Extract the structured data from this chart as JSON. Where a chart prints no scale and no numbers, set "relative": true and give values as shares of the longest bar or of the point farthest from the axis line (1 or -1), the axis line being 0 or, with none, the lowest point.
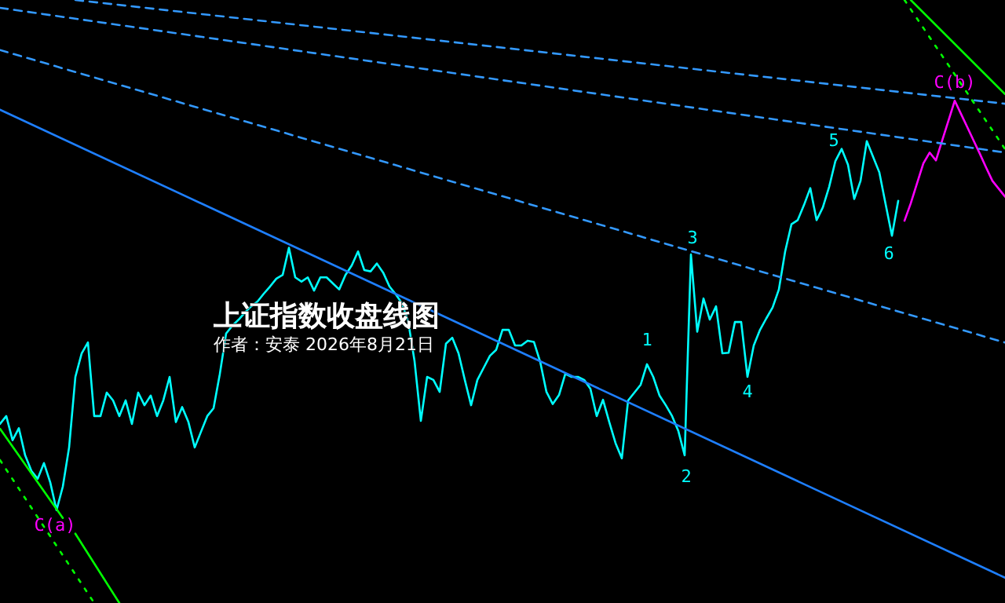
{
  "chart_data": {
    "type": "line",
    "relative": true,
    "title": "上证指数收盘线图",
    "subtitle": "作者：安泰 2026年8月21日",
    "categories": [
      null,
      null,
      null,
      null,
      null,
      null,
      null,
      null,
      null,
      null,
      null,
      null,
      null,
      null,
      null,
      null,
      null,
      null,
      null,
      null,
      null,
      null,
      null,
      null,
      null,
      null,
      null,
      null,
      null,
      null,
      null,
      null,
      null,
      null,
      null,
      null,
      null,
      null,
      null,
      null,
      null,
      null,
      null,
      null,
      null,
      null,
      null,
      null,
      null,
      null,
      null,
      null,
      null,
      null,
      null,
      null,
      null,
      null,
      null,
      null,
      null,
      null,
      null,
      null,
      null,
      null,
      null,
      null,
      null,
      null,
      null,
      null,
      null,
      null,
      null,
      null,
      null,
      null,
      null,
      null,
      null,
      null,
      null,
      null,
      null,
      null,
      null,
      null,
      null,
      null,
      null,
      null,
      null,
      null,
      null,
      null,
      null,
      null,
      null,
      null,
      null,
      null,
      null,
      null,
      null,
      null,
      null,
      null,
      null,
      null,
      null,
      null,
      null,
      null,
      null,
      null,
      null,
      null,
      null,
      null,
      null,
      null,
      null,
      null,
      null,
      null,
      null,
      null,
      null,
      null,
      null,
      null,
      null,
      null,
      null,
      null,
      null,
      null,
      null,
      null,
      null,
      null,
      null,
      null,
      null,
      null,
      null,
      null,
      null,
      null,
      null,
      null,
      null,
      null,
      null,
      null,
      null,
      null,
      null,
      null,
      null
    ],
    "series": [
      {
        "color": "#00ffff",
        "line_style": "solid",
        "values": [
          0.297,
          0.31,
          0.27,
          0.29,
          0.245,
          0.219,
          0.206,
          0.232,
          0.2,
          0.154,
          0.193,
          0.258,
          0.375,
          0.414,
          0.432,
          0.31,
          0.31,
          0.349,
          0.336,
          0.31,
          0.336,
          0.297,
          0.349,
          0.328,
          0.344,
          0.31,
          0.336,
          0.375,
          0.3,
          0.325,
          0.3,
          0.258,
          0.284,
          0.31,
          0.323,
          0.38,
          0.447,
          0.46,
          0.47,
          0.482,
          0.492,
          0.5,
          0.513,
          0.525,
          0.538,
          0.544,
          0.589,
          0.54,
          0.533,
          0.54,
          0.518,
          0.54,
          0.54,
          0.53,
          0.52,
          0.544,
          0.56,
          0.583,
          0.552,
          0.55,
          0.563,
          0.548,
          0.525,
          0.512,
          0.497,
          0.466,
          0.401,
          0.302,
          0.375,
          0.37,
          0.35,
          0.43,
          0.44,
          0.414,
          0.37,
          0.328,
          0.37,
          0.39,
          0.41,
          0.42,
          0.453,
          0.453,
          0.427,
          0.427,
          0.435,
          0.433,
          0.4,
          0.35,
          0.33,
          0.345,
          0.38,
          0.375,
          0.375,
          0.37,
          0.355,
          0.31,
          0.337,
          0.3,
          0.265,
          0.24,
          0.336,
          0.349,
          0.362,
          0.396,
          0.375,
          0.344,
          0.328,
          0.31,
          0.285,
          0.245,
          0.578,
          0.45,
          0.505,
          0.47,
          0.492,
          0.414,
          0.415,
          0.466,
          0.466,
          0.375,
          0.427,
          0.453,
          0.472,
          0.49,
          0.52,
          0.583,
          0.628,
          0.635,
          0.66,
          0.688,
          0.635,
          0.656,
          0.69,
          0.733,
          0.753,
          0.727,
          0.67,
          0.7,
          0.766,
          0.74,
          0.714,
          0.661,
          0.609,
          0.667,
          null,
          null,
          null,
          null,
          null,
          null,
          null,
          null,
          null,
          null,
          null,
          null,
          null,
          null,
          null,
          null,
          null
        ]
      },
      {
        "color": "#ff00ff",
        "line_style": "solid",
        "values": [
          null,
          null,
          null,
          null,
          null,
          null,
          null,
          null,
          null,
          null,
          null,
          null,
          null,
          null,
          null,
          null,
          null,
          null,
          null,
          null,
          null,
          null,
          null,
          null,
          null,
          null,
          null,
          null,
          null,
          null,
          null,
          null,
          null,
          null,
          null,
          null,
          null,
          null,
          null,
          null,
          null,
          null,
          null,
          null,
          null,
          null,
          null,
          null,
          null,
          null,
          null,
          null,
          null,
          null,
          null,
          null,
          null,
          null,
          null,
          null,
          null,
          null,
          null,
          null,
          null,
          null,
          null,
          null,
          null,
          null,
          null,
          null,
          null,
          null,
          null,
          null,
          null,
          null,
          null,
          null,
          null,
          null,
          null,
          null,
          null,
          null,
          null,
          null,
          null,
          null,
          null,
          null,
          null,
          null,
          null,
          null,
          null,
          null,
          null,
          null,
          null,
          null,
          null,
          null,
          null,
          null,
          null,
          null,
          null,
          null,
          null,
          null,
          null,
          null,
          null,
          null,
          null,
          null,
          null,
          null,
          null,
          null,
          null,
          null,
          null,
          null,
          null,
          null,
          null,
          null,
          null,
          null,
          null,
          null,
          null,
          null,
          null,
          null,
          null,
          null,
          null,
          null,
          null,
          null,
          0.634,
          0.663,
          0.696,
          0.729,
          0.747,
          0.734,
          0.767,
          0.8,
          0.833,
          0.811,
          0.789,
          0.767,
          0.745,
          0.722,
          0.7,
          0.687,
          0.674
        ]
      },
      {
        "color": "#3399ff",
        "line_style": "dashed",
        "values": [
          null,
          null,
          null,
          null,
          null,
          null,
          null,
          null,
          null,
          null,
          null,
          null,
          1,
          null,
          null,
          null,
          null,
          null,
          null,
          null,
          null,
          null,
          null,
          null,
          null,
          null,
          null,
          null,
          null,
          null,
          null,
          null,
          null,
          null,
          null,
          null,
          null,
          null,
          null,
          null,
          null,
          null,
          null,
          null,
          null,
          null,
          null,
          null,
          null,
          null,
          null,
          null,
          null,
          null,
          null,
          null,
          null,
          null,
          null,
          null,
          null,
          null,
          null,
          null,
          null,
          null,
          null,
          null,
          null,
          null,
          null,
          null,
          null,
          null,
          null,
          null,
          null,
          null,
          null,
          null,
          null,
          null,
          null,
          null,
          null,
          null,
          null,
          null,
          null,
          null,
          null,
          null,
          null,
          null,
          null,
          null,
          null,
          null,
          null,
          null,
          null,
          null,
          null,
          null,
          null,
          null,
          null,
          null,
          null,
          null,
          null,
          null,
          null,
          null,
          null,
          null,
          null,
          null,
          null,
          null,
          null,
          null,
          null,
          null,
          null,
          null,
          null,
          null,
          null,
          null,
          null,
          null,
          null,
          null,
          null,
          null,
          null,
          null,
          null,
          null,
          null,
          null,
          null,
          null,
          null,
          null,
          null,
          null,
          null,
          null,
          null,
          null,
          null,
          null,
          null,
          null,
          null,
          null,
          null,
          null,
          0.828
        ]
      },
      {
        "color": "#3399ff",
        "line_style": "dashed",
        "values": [
          0.987,
          null,
          null,
          null,
          null,
          null,
          null,
          null,
          null,
          null,
          null,
          null,
          null,
          null,
          null,
          null,
          null,
          null,
          null,
          null,
          null,
          null,
          null,
          null,
          null,
          null,
          null,
          null,
          null,
          null,
          null,
          null,
          null,
          null,
          null,
          null,
          null,
          null,
          null,
          null,
          null,
          null,
          null,
          null,
          null,
          null,
          null,
          null,
          null,
          null,
          null,
          null,
          null,
          null,
          null,
          null,
          null,
          null,
          null,
          null,
          null,
          null,
          null,
          null,
          null,
          null,
          null,
          null,
          null,
          null,
          null,
          null,
          null,
          null,
          null,
          null,
          null,
          null,
          null,
          null,
          null,
          null,
          null,
          null,
          null,
          null,
          null,
          null,
          null,
          null,
          null,
          null,
          null,
          null,
          null,
          null,
          null,
          null,
          null,
          null,
          null,
          null,
          null,
          null,
          null,
          null,
          null,
          null,
          null,
          null,
          null,
          null,
          null,
          null,
          null,
          null,
          null,
          null,
          null,
          null,
          null,
          null,
          null,
          null,
          null,
          null,
          null,
          null,
          null,
          null,
          null,
          null,
          null,
          null,
          null,
          null,
          null,
          null,
          null,
          null,
          null,
          null,
          null,
          null,
          null,
          null,
          null,
          null,
          null,
          null,
          null,
          null,
          null,
          null,
          null,
          null,
          null,
          null,
          null,
          null,
          0.747
        ]
      },
      {
        "color": "#3399ff",
        "line_style": "dashed",
        "values": [
          0.917,
          null,
          null,
          null,
          null,
          null,
          null,
          null,
          null,
          null,
          null,
          null,
          null,
          null,
          null,
          null,
          null,
          null,
          null,
          null,
          null,
          null,
          null,
          null,
          null,
          null,
          null,
          null,
          null,
          null,
          null,
          null,
          null,
          null,
          null,
          null,
          null,
          null,
          null,
          null,
          null,
          null,
          null,
          null,
          null,
          null,
          null,
          null,
          null,
          null,
          null,
          null,
          null,
          null,
          null,
          null,
          null,
          null,
          null,
          null,
          null,
          null,
          null,
          null,
          null,
          null,
          null,
          null,
          null,
          null,
          null,
          null,
          null,
          null,
          null,
          null,
          null,
          null,
          null,
          null,
          null,
          null,
          null,
          null,
          null,
          null,
          null,
          null,
          null,
          null,
          null,
          null,
          null,
          null,
          null,
          null,
          null,
          null,
          null,
          null,
          null,
          null,
          null,
          null,
          null,
          null,
          null,
          null,
          null,
          null,
          null,
          null,
          null,
          null,
          null,
          null,
          null,
          null,
          null,
          null,
          null,
          null,
          null,
          null,
          null,
          null,
          null,
          null,
          null,
          null,
          null,
          null,
          null,
          null,
          null,
          null,
          null,
          null,
          null,
          null,
          null,
          null,
          null,
          null,
          null,
          null,
          null,
          null,
          null,
          null,
          null,
          null,
          null,
          null,
          null,
          null,
          null,
          null,
          null,
          null,
          0.432
        ]
      },
      {
        "color": "#1e7fff",
        "line_style": "solid",
        "values": [
          0.818,
          null,
          null,
          null,
          null,
          null,
          null,
          null,
          null,
          null,
          null,
          null,
          null,
          null,
          null,
          null,
          null,
          null,
          null,
          null,
          null,
          null,
          null,
          null,
          null,
          null,
          null,
          null,
          null,
          null,
          null,
          null,
          null,
          null,
          null,
          null,
          null,
          null,
          null,
          null,
          null,
          null,
          null,
          null,
          null,
          null,
          null,
          null,
          null,
          null,
          null,
          null,
          null,
          null,
          null,
          null,
          null,
          null,
          null,
          null,
          null,
          null,
          null,
          null,
          null,
          null,
          null,
          null,
          null,
          null,
          null,
          null,
          null,
          null,
          null,
          null,
          null,
          null,
          null,
          null,
          null,
          null,
          null,
          null,
          null,
          null,
          null,
          null,
          null,
          null,
          null,
          null,
          null,
          null,
          null,
          null,
          null,
          null,
          null,
          null,
          null,
          null,
          null,
          null,
          null,
          null,
          null,
          null,
          null,
          null,
          null,
          null,
          null,
          null,
          null,
          null,
          null,
          null,
          null,
          null,
          null,
          null,
          null,
          null,
          null,
          null,
          null,
          null,
          null,
          null,
          null,
          null,
          null,
          null,
          null,
          null,
          null,
          null,
          null,
          null,
          null,
          null,
          null,
          null,
          null,
          null,
          null,
          null,
          null,
          null,
          null,
          null,
          null,
          null,
          null,
          null,
          null,
          null,
          null,
          null,
          0.042
        ]
      },
      {
        "color": "#00ff00",
        "line_style": "solid",
        "values": [
          null,
          null,
          null,
          null,
          null,
          null,
          null,
          null,
          null,
          null,
          null,
          null,
          null,
          null,
          null,
          null,
          null,
          null,
          null,
          null,
          null,
          null,
          null,
          null,
          null,
          null,
          null,
          null,
          null,
          null,
          null,
          null,
          null,
          null,
          null,
          null,
          null,
          null,
          null,
          null,
          null,
          null,
          null,
          null,
          null,
          null,
          null,
          null,
          null,
          null,
          null,
          null,
          null,
          null,
          null,
          null,
          null,
          null,
          null,
          null,
          null,
          null,
          null,
          null,
          null,
          null,
          null,
          null,
          null,
          null,
          null,
          null,
          null,
          null,
          null,
          null,
          null,
          null,
          null,
          null,
          null,
          null,
          null,
          null,
          null,
          null,
          null,
          null,
          null,
          null,
          null,
          null,
          null,
          null,
          null,
          null,
          null,
          null,
          null,
          null,
          null,
          null,
          null,
          null,
          null,
          null,
          null,
          null,
          null,
          null,
          null,
          null,
          null,
          null,
          null,
          null,
          null,
          null,
          null,
          null,
          null,
          null,
          null,
          null,
          null,
          null,
          null,
          null,
          null,
          null,
          null,
          null,
          null,
          null,
          null,
          null,
          null,
          null,
          null,
          null,
          null,
          null,
          null,
          null,
          null,
          1,
          null,
          null,
          null,
          null,
          null,
          null,
          null,
          null,
          null,
          null,
          null,
          null,
          null,
          null,
          0.844
        ]
      },
      {
        "color": "#00ff00",
        "line_style": "solid",
        "values": [
          0.289,
          null,
          null,
          null,
          null,
          null,
          null,
          null,
          null,
          null,
          0.141,
          null,
          null,
          null,
          null,
          null,
          null,
          null,
          null,
          null,
          null,
          null,
          null,
          null,
          null,
          null,
          null,
          null,
          null,
          null,
          null,
          null,
          null,
          null,
          null,
          null,
          null,
          null,
          null,
          null,
          null,
          null,
          null,
          null,
          null,
          null,
          null,
          null,
          null,
          null,
          null,
          null,
          null,
          null,
          null,
          null,
          null,
          null,
          null,
          null,
          null,
          null,
          null,
          null,
          null,
          null,
          null,
          null,
          null,
          null,
          null,
          null,
          null,
          null,
          null,
          null,
          null,
          null,
          null,
          null,
          null,
          null,
          null,
          null,
          null,
          null,
          null,
          null,
          null,
          null,
          null,
          null,
          null,
          null,
          null,
          null,
          null,
          null,
          null,
          null,
          null,
          null,
          null,
          null,
          null,
          null,
          null,
          null,
          null,
          null,
          null,
          null,
          null,
          null,
          null,
          null,
          null,
          null,
          null,
          null,
          null,
          null,
          null,
          null,
          null,
          null,
          null,
          null,
          null,
          null,
          null,
          null,
          null,
          null,
          null,
          null,
          null,
          null,
          null,
          null,
          null,
          null,
          null,
          null,
          null,
          null,
          null,
          null,
          null,
          null,
          null,
          null,
          null,
          null,
          null,
          null,
          null,
          null,
          null,
          null,
          null
        ]
      },
      {
        "color": "#00ff00",
        "line_style": "solid",
        "values": [
          null,
          null,
          null,
          null,
          null,
          null,
          null,
          null,
          null,
          null,
          null,
          null,
          0.115,
          null,
          null,
          null,
          null,
          null,
          null,
          0,
          null,
          null,
          null,
          null,
          null,
          null,
          null,
          null,
          null,
          null,
          null,
          null,
          null,
          null,
          null,
          null,
          null,
          null,
          null,
          null,
          null,
          null,
          null,
          null,
          null,
          null,
          null,
          null,
          null,
          null,
          null,
          null,
          null,
          null,
          null,
          null,
          null,
          null,
          null,
          null,
          null,
          null,
          null,
          null,
          null,
          null,
          null,
          null,
          null,
          null,
          null,
          null,
          null,
          null,
          null,
          null,
          null,
          null,
          null,
          null,
          null,
          null,
          null,
          null,
          null,
          null,
          null,
          null,
          null,
          null,
          null,
          null,
          null,
          null,
          null,
          null,
          null,
          null,
          null,
          null,
          null,
          null,
          null,
          null,
          null,
          null,
          null,
          null,
          null,
          null,
          null,
          null,
          null,
          null,
          null,
          null,
          null,
          null,
          null,
          null,
          null,
          null,
          null,
          null,
          null,
          null,
          null,
          null,
          null,
          null,
          null,
          null,
          null,
          null,
          null,
          null,
          null,
          null,
          null,
          null,
          null,
          null,
          null,
          null,
          null,
          null,
          null,
          null,
          null,
          null,
          null,
          null,
          null,
          null,
          null,
          null,
          null,
          null,
          null,
          null,
          null
        ]
      },
      {
        "color": "#00ff00",
        "line_style": "dotted",
        "values": [
          null,
          null,
          null,
          null,
          null,
          null,
          null,
          null,
          null,
          null,
          null,
          null,
          null,
          null,
          null,
          null,
          null,
          null,
          null,
          null,
          null,
          null,
          null,
          null,
          null,
          null,
          null,
          null,
          null,
          null,
          null,
          null,
          null,
          null,
          null,
          null,
          null,
          null,
          null,
          null,
          null,
          null,
          null,
          null,
          null,
          null,
          null,
          null,
          null,
          null,
          null,
          null,
          null,
          null,
          null,
          null,
          null,
          null,
          null,
          null,
          null,
          null,
          null,
          null,
          null,
          null,
          null,
          null,
          null,
          null,
          null,
          null,
          null,
          null,
          null,
          null,
          null,
          null,
          null,
          null,
          null,
          null,
          null,
          null,
          null,
          null,
          null,
          null,
          null,
          null,
          null,
          null,
          null,
          null,
          null,
          null,
          null,
          null,
          null,
          null,
          null,
          null,
          null,
          null,
          null,
          null,
          null,
          null,
          null,
          null,
          null,
          null,
          null,
          null,
          null,
          null,
          null,
          null,
          null,
          null,
          null,
          null,
          null,
          null,
          null,
          null,
          null,
          null,
          null,
          null,
          null,
          null,
          null,
          null,
          null,
          null,
          null,
          null,
          null,
          null,
          null,
          null,
          null,
          null,
          1,
          null,
          null,
          null,
          null,
          null,
          null,
          null,
          null,
          null,
          null,
          null,
          null,
          null,
          null,
          null,
          0.753
        ]
      },
      {
        "color": "#00ff00",
        "line_style": "dotted",
        "values": [
          0.237,
          null,
          null,
          null,
          null,
          null,
          null,
          null,
          null,
          null,
          null,
          null,
          null,
          null,
          null,
          0,
          null,
          null,
          null,
          null,
          null,
          null,
          null,
          null,
          null,
          null,
          null,
          null,
          null,
          null,
          null,
          null,
          null,
          null,
          null,
          null,
          null,
          null,
          null,
          null,
          null,
          null,
          null,
          null,
          null,
          null,
          null,
          null,
          null,
          null,
          null,
          null,
          null,
          null,
          null,
          null,
          null,
          null,
          null,
          null,
          null,
          null,
          null,
          null,
          null,
          null,
          null,
          null,
          null,
          null,
          null,
          null,
          null,
          null,
          null,
          null,
          null,
          null,
          null,
          null,
          null,
          null,
          null,
          null,
          null,
          null,
          null,
          null,
          null,
          null,
          null,
          null,
          null,
          null,
          null,
          null,
          null,
          null,
          null,
          null,
          null,
          null,
          null,
          null,
          null,
          null,
          null,
          null,
          null,
          null,
          null,
          null,
          null,
          null,
          null,
          null,
          null,
          null,
          null,
          null,
          null,
          null,
          null,
          null,
          null,
          null,
          null,
          null,
          null,
          null,
          null,
          null,
          null,
          null,
          null,
          null,
          null,
          null,
          null,
          null,
          null,
          null,
          null,
          null,
          null,
          null,
          null,
          null,
          null,
          null,
          null,
          null,
          null,
          null,
          null,
          null,
          null,
          null,
          null,
          null,
          null
        ]
      }
    ],
    "annotations": [
      "1",
      "2",
      "3",
      "4",
      "5",
      "6",
      "C(a)",
      "C(b)"
    ]
  }
}
